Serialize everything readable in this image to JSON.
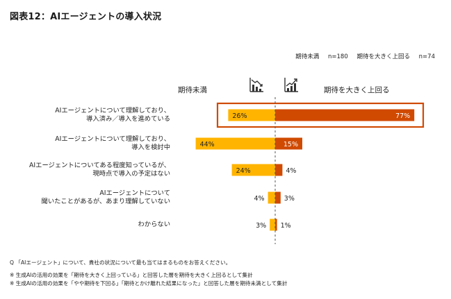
{
  "title": "図表12：AIエージェントの導入状況",
  "sample_sizes": {
    "below_label": "期待未満",
    "below_n": "n=180",
    "above_label": "期待を大きく上回る",
    "above_n": "n=74"
  },
  "icons": {
    "left": "declining-chart-icon",
    "right": "rising-chart-icon"
  },
  "colors": {
    "below": "#FFB400",
    "above": "#D04A02",
    "highlight_border": "#D04A02",
    "axis": "#555555"
  },
  "chart_data": {
    "type": "bar",
    "orientation": "horizontal-diverging",
    "categories": [
      "AIエージェントについて理解しており、\n導入済み／導入を進めている",
      "AIエージェントについて理解しており、\n導入を検討中",
      "AIエージェントについてある程度知っているが、\n現時点で導入の予定はない",
      "AIエージェントについて\n聞いたことがあるが、あまり理解していない",
      "わからない"
    ],
    "series": [
      {
        "name": "期待未満",
        "values": [
          26,
          44,
          24,
          4,
          3
        ]
      },
      {
        "name": "期待を大きく上回る",
        "values": [
          77,
          15,
          4,
          3,
          1
        ]
      }
    ],
    "value_labels": {
      "below": [
        "26%",
        "44%",
        "24%",
        "4%",
        "3%"
      ],
      "above": [
        "77%",
        "15%",
        "4%",
        "3%",
        "1%"
      ]
    },
    "highlighted_category_index": 0,
    "unit": "%"
  },
  "footnotes": {
    "question": "Q 「AIエージェント」について、貴社の状況について最も当てはまるものをお答えください。",
    "note1": "※ 生成AIの活用の効果を「期待を大きく上回っている」と回答した層を期待を大きく上回るとして集計",
    "note2": "※ 生成AIの活用の効果を「やや期待を下回る」「期待とかけ離れた結果になった」と回答した層を期待未満として集計"
  }
}
